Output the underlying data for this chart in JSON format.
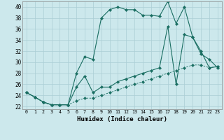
{
  "xlabel": "Humidex (Indice chaleur)",
  "background_color": "#cce8ec",
  "grid_color": "#aacdd4",
  "line_color": "#1a6e62",
  "xlim": [
    -0.5,
    23.5
  ],
  "ylim": [
    21.5,
    41.0
  ],
  "xticks": [
    0,
    1,
    2,
    3,
    4,
    5,
    6,
    7,
    8,
    9,
    10,
    11,
    12,
    13,
    14,
    15,
    16,
    17,
    18,
    19,
    20,
    21,
    22,
    23
  ],
  "yticks": [
    22,
    24,
    26,
    28,
    30,
    32,
    34,
    36,
    38,
    40
  ],
  "curve1_x": [
    0,
    1,
    2,
    3,
    4,
    5,
    6,
    7,
    8,
    9,
    10,
    11,
    12,
    13,
    14,
    15,
    16,
    17,
    18,
    19,
    20,
    21,
    22,
    23
  ],
  "curve1_y": [
    24.5,
    23.7,
    22.8,
    22.3,
    22.3,
    22.3,
    28.0,
    31.0,
    30.5,
    38.0,
    39.5,
    40.0,
    39.5,
    39.5,
    38.5,
    38.5,
    38.3,
    41.0,
    37.0,
    40.0,
    34.5,
    31.5,
    30.5,
    29.0
  ],
  "curve2_x": [
    0,
    1,
    2,
    3,
    4,
    5,
    6,
    7,
    8,
    9,
    10,
    11,
    12,
    13,
    14,
    15,
    16,
    17,
    18,
    19,
    20,
    21,
    22,
    23
  ],
  "curve2_y": [
    24.5,
    23.7,
    22.8,
    22.3,
    22.3,
    22.3,
    25.5,
    27.5,
    24.5,
    25.5,
    25.5,
    26.5,
    27.0,
    27.5,
    28.0,
    28.5,
    29.0,
    36.5,
    26.0,
    35.0,
    34.5,
    32.0,
    29.0,
    29.2
  ],
  "curve3_x": [
    0,
    1,
    2,
    3,
    4,
    5,
    6,
    7,
    8,
    9,
    10,
    11,
    12,
    13,
    14,
    15,
    16,
    17,
    18,
    19,
    20,
    21,
    22,
    23
  ],
  "curve3_y": [
    24.5,
    23.7,
    22.8,
    22.3,
    22.3,
    22.3,
    23.0,
    23.5,
    23.5,
    24.0,
    24.5,
    25.0,
    25.5,
    26.0,
    26.5,
    27.0,
    27.5,
    28.0,
    28.5,
    29.0,
    29.5,
    29.5,
    29.0,
    29.2
  ]
}
